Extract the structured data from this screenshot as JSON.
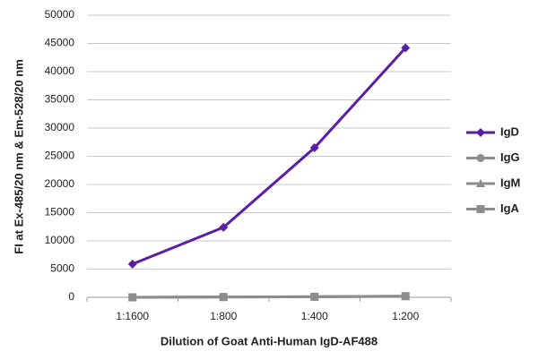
{
  "chart_data": {
    "type": "line",
    "x_label": "Dilution of Goat Anti-Human IgD-AF488",
    "y_label": "FI at Ex-485/20 nm & Em-528/20 nm",
    "categories": [
      "1:1600",
      "1:800",
      "1:400",
      "1:200"
    ],
    "series": [
      {
        "name": "IgD",
        "color": "#5a1ea6",
        "marker": "diamond",
        "values": [
          5900,
          12400,
          26500,
          44200
        ]
      },
      {
        "name": "IgG",
        "color": "#8c8c8c",
        "marker": "circle",
        "values": [
          0,
          50,
          100,
          200
        ]
      },
      {
        "name": "IgM",
        "color": "#8c8c8c",
        "marker": "triangle",
        "values": [
          0,
          50,
          100,
          150
        ]
      },
      {
        "name": "IgA",
        "color": "#8c8c8c",
        "marker": "square",
        "values": [
          0,
          50,
          100,
          200
        ]
      }
    ],
    "ylim": [
      0,
      50000
    ],
    "yticks": [
      0,
      5000,
      10000,
      15000,
      20000,
      25000,
      30000,
      35000,
      40000,
      45000,
      50000
    ],
    "grid": true,
    "legend": "right"
  }
}
